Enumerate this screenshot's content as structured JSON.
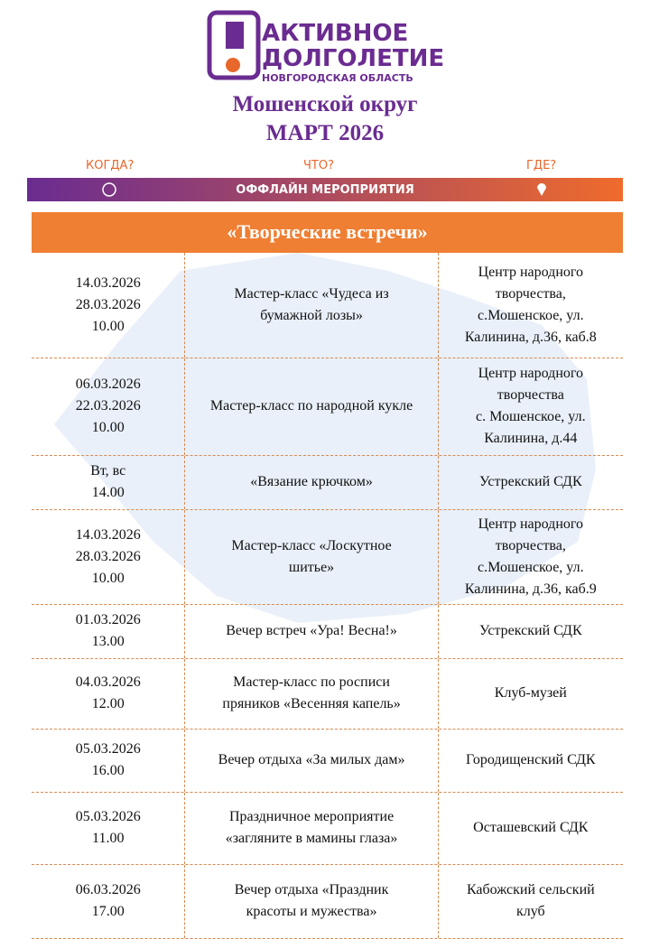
{
  "logo": {
    "line1": "АКТИВНОЕ",
    "line2": "ДОЛГОЛЕТИЕ",
    "line3": "НОВГОРОДСКАЯ ОБЛАСТЬ"
  },
  "header": {
    "district": "Мошенской округ",
    "month": "МАРТ 2026"
  },
  "columns": {
    "when": "КОГДА?",
    "what": "ЧТО?",
    "where": "ГДЕ?"
  },
  "banner": "ОФФЛАЙН МЕРОПРИЯТИЯ",
  "section": "«Творческие встречи»",
  "table": {
    "rows": [
      {
        "when": [
          "14.03.2026",
          "28.03.2026",
          "10.00"
        ],
        "what": [
          "Мастер-класс «Чудеса из",
          "бумажной лозы»"
        ],
        "where": [
          "Центр народного",
          "творчества,",
          "с.Мошенское, ул.",
          "Калинина, д.36, каб.8"
        ]
      },
      {
        "when": [
          "06.03.2026",
          "22.03.2026",
          "10.00"
        ],
        "what": [
          "Мастер-класс по народной кукле"
        ],
        "where": [
          "Центр народного",
          "творчества",
          "с. Мошенское, ул.",
          "Калинина, д.44"
        ]
      },
      {
        "when": [
          "Вт, вс",
          "14.00"
        ],
        "what": [
          "«Вязание крючком»"
        ],
        "where": [
          "Устрекский СДК"
        ]
      },
      {
        "when": [
          "14.03.2026",
          "28.03.2026",
          "10.00"
        ],
        "what": [
          "Мастер-класс «Лоскутное",
          "шитье»"
        ],
        "where": [
          "Центр народного",
          "творчества,",
          "с.Мошенское, ул.",
          "Калинина, д.36, каб.9"
        ]
      },
      {
        "when": [
          "01.03.2026",
          "13.00"
        ],
        "what": [
          "Вечер встреч «Ура! Весна!»"
        ],
        "where": [
          "Устрекский СДК"
        ]
      },
      {
        "when": [
          "04.03.2026",
          "12.00"
        ],
        "what": [
          "Мастер-класс по росписи",
          "пряников «Весенняя капель»"
        ],
        "where": [
          "Клуб-музей"
        ]
      },
      {
        "when": [
          "05.03.2026",
          "16.00"
        ],
        "what": [
          "Вечер отдыха «За милых дам»"
        ],
        "where": [
          "Городищенский СДК"
        ]
      },
      {
        "when": [
          "05.03.2026",
          "11.00"
        ],
        "what": [
          "Праздничное мероприятие",
          "«загляните в мамины глаза»"
        ],
        "where": [
          "Осташевский СДК"
        ]
      },
      {
        "when": [
          "06.03.2026",
          "17.00"
        ],
        "what": [
          "Вечер отдыха «Праздник",
          "красоты и мужества»"
        ],
        "where": [
          "Кабожский сельский",
          "клуб"
        ]
      }
    ]
  }
}
